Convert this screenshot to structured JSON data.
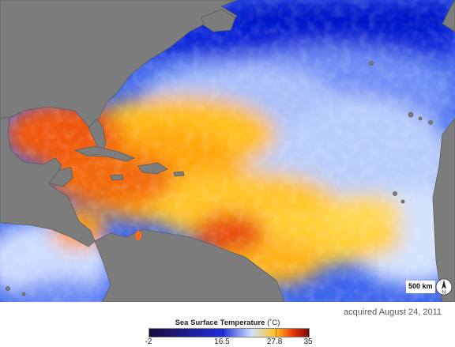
{
  "map": {
    "subject": "Sea Surface Temperature",
    "scale_bar": "500 km",
    "north_arrow": "N",
    "acquired": "acquired August 24, 2011"
  },
  "legend": {
    "title": "Sea Surface Temperature",
    "unit": "(˚C)",
    "min_label": "-2",
    "tick_1": "16.5",
    "tick_2": "27.8",
    "max_label": "35",
    "colors": {
      "cold": "#1a0a3a",
      "cool": "#1f2fd8",
      "mild": "#cfe0ff",
      "warm": "#ffc21e",
      "hot": "#e8370f",
      "max": "#7a0a0a"
    }
  }
}
